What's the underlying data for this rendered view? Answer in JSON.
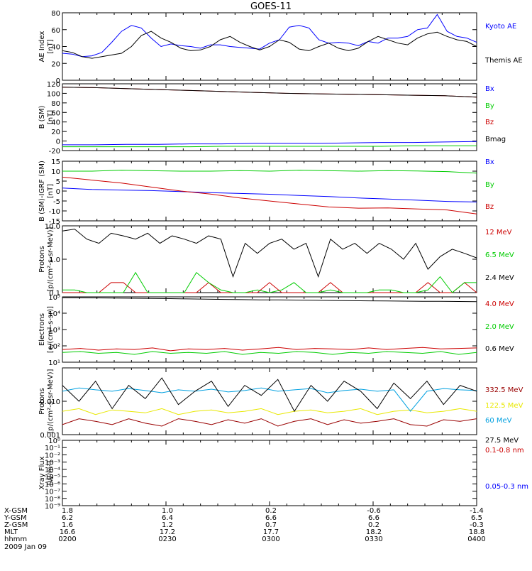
{
  "title": "GOES-11",
  "colors": {
    "black": "#000000",
    "blue": "#0000ff",
    "green": "#00cc00",
    "red": "#cc0000",
    "darkred": "#990000",
    "cyan": "#00a0e0",
    "yellow": "#e8e800"
  },
  "chart_data": [
    {
      "type": "line",
      "ylabel": [
        "AE Index",
        "[nT]"
      ],
      "ylim": [
        0,
        80
      ],
      "log": false,
      "yticks": [
        0,
        20,
        40,
        60,
        80
      ],
      "ytick_labels": [
        "0",
        "20",
        "40",
        "60",
        "80"
      ],
      "series": [
        {
          "name": "Kyoto AE",
          "color": "#0000ff",
          "values": [
            32,
            31,
            28,
            29,
            33,
            45,
            58,
            65,
            62,
            50,
            40,
            43,
            41,
            40,
            38,
            42,
            42,
            40,
            39,
            38,
            37,
            44,
            48,
            63,
            65,
            62,
            48,
            44,
            45,
            44,
            41,
            46,
            44,
            50,
            50,
            52,
            60,
            62,
            78,
            58,
            52,
            50,
            45
          ]
        },
        {
          "name": "Themis AE",
          "color": "#000000",
          "values": [
            35,
            33,
            28,
            26,
            28,
            30,
            32,
            40,
            53,
            58,
            50,
            45,
            38,
            35,
            36,
            40,
            48,
            52,
            45,
            40,
            36,
            40,
            48,
            45,
            37,
            35,
            40,
            44,
            38,
            35,
            38,
            46,
            52,
            48,
            44,
            42,
            50,
            55,
            57,
            52,
            48,
            46,
            40
          ]
        }
      ]
    },
    {
      "type": "line",
      "ylabel": [
        "B (SM)",
        "[nT]"
      ],
      "ylim": [
        -20,
        120
      ],
      "log": false,
      "yticks": [
        -20,
        0,
        20,
        40,
        60,
        80,
        100,
        120
      ],
      "ytick_labels": [
        "-20",
        "0",
        "20",
        "40",
        "60",
        "80",
        "100",
        "120"
      ],
      "series": [
        {
          "name": "Bx",
          "color": "#0000ff",
          "values": [
            -8,
            -8,
            -7,
            -7,
            -6,
            -6,
            -5,
            -5,
            -5,
            -4,
            -3,
            -3,
            -2,
            -1
          ]
        },
        {
          "name": "By",
          "color": "#00cc00",
          "values": [
            -12,
            -12,
            -12,
            -12,
            -12,
            -11,
            -11,
            -11,
            -11,
            -11,
            -11,
            -10,
            -10,
            -10
          ]
        },
        {
          "name": "Bz",
          "color": "#cc0000",
          "values": [
            113,
            112,
            110,
            108,
            106,
            104,
            102,
            100,
            99,
            98,
            97,
            96,
            95,
            92
          ]
        },
        {
          "name": "Bmag",
          "color": "#000000",
          "values": [
            113,
            112,
            110,
            108,
            106,
            104,
            102,
            100,
            99,
            98,
            97,
            96,
            95,
            92
          ]
        }
      ]
    },
    {
      "type": "line",
      "ylabel": [
        "B (SM)-IGRF (SM)",
        "[nT]"
      ],
      "ylim": [
        -15,
        15
      ],
      "log": false,
      "yticks": [
        -15,
        -10,
        -5,
        0,
        5,
        10,
        15
      ],
      "ytick_labels": [
        "-15",
        "-10",
        "-5",
        "0",
        "5",
        "10",
        "15"
      ],
      "series": [
        {
          "name": "Bx",
          "color": "#0000ff",
          "values": [
            1.5,
            0.8,
            0.5,
            0.2,
            -0.3,
            -0.8,
            -1.2,
            -1.6,
            -2.2,
            -2.8,
            -3.5,
            -4,
            -4.6,
            -5.2,
            -5.5
          ]
        },
        {
          "name": "By",
          "color": "#00cc00",
          "values": [
            10,
            10,
            10.5,
            10.2,
            10,
            10,
            10.3,
            10,
            10.5,
            10.2,
            10,
            10.3,
            10.1,
            9.8,
            9
          ]
        },
        {
          "name": "Bz",
          "color": "#cc0000",
          "values": [
            7,
            5.5,
            4,
            2,
            0,
            -1.5,
            -3.5,
            -5,
            -6.5,
            -8,
            -8.6,
            -8.5,
            -9,
            -9.5,
            -11.5
          ]
        }
      ]
    },
    {
      "type": "line",
      "ylabel": [
        "Protons",
        "[p/(cm²-s-sr-MeV)]"
      ],
      "ylim": [
        0.1,
        10
      ],
      "log": true,
      "yticks": [
        0.1,
        1,
        10
      ],
      "ytick_labels": [
        "0.1",
        "1.0",
        "10.0"
      ],
      "series": [
        {
          "name": "12 MeV",
          "color": "#cc0000",
          "values": [
            0.1,
            0.1,
            0.1,
            0.1,
            0.2,
            0.2,
            0.1,
            0.1,
            0.1,
            0.1,
            0.1,
            0.1,
            0.2,
            0.1,
            0.1,
            0.1,
            0.1,
            0.2,
            0.1,
            0.1,
            0.1,
            0.1,
            0.2,
            0.1,
            0.1,
            0.1,
            0.1,
            0.1,
            0.1,
            0.1,
            0.2,
            0.1,
            0.1,
            0.2,
            0.1
          ]
        },
        {
          "name": "6.5 MeV",
          "color": "#00cc00",
          "values": [
            0.12,
            0.12,
            0.1,
            0.1,
            0.1,
            0.1,
            0.4,
            0.1,
            0.1,
            0.1,
            0.1,
            0.4,
            0.2,
            0.12,
            0.1,
            0.1,
            0.12,
            0.1,
            0.12,
            0.2,
            0.1,
            0.1,
            0.12,
            0.1,
            0.1,
            0.1,
            0.12,
            0.12,
            0.1,
            0.1,
            0.12,
            0.3,
            0.1,
            0.2,
            0.2
          ]
        },
        {
          "name": "2.4 MeV",
          "color": "#000000",
          "values": [
            7,
            8,
            4,
            3,
            6,
            5,
            4,
            6,
            3,
            5,
            4,
            3,
            5,
            4,
            0.3,
            3,
            1.5,
            3,
            4,
            2,
            3,
            0.3,
            4,
            2,
            3,
            1.5,
            3,
            2,
            1,
            3,
            0.5,
            1.2,
            2,
            1.5,
            1.1
          ]
        }
      ]
    },
    {
      "type": "line",
      "ylabel": [
        "Electrons",
        "[e/(cm²-s-sr)]"
      ],
      "ylim": [
        10,
        100000
      ],
      "log": true,
      "yticks": [
        10,
        100,
        1000,
        10000,
        100000
      ],
      "ytick_labels": [
        "10¹",
        "10²",
        "10³",
        "10⁴",
        "10⁵"
      ],
      "series": [
        {
          "name": "4.0 MeV",
          "color": "#cc0000",
          "values": [
            60,
            70,
            55,
            65,
            60,
            75,
            50,
            65,
            60,
            70,
            55,
            65,
            80,
            60,
            70,
            65,
            60,
            75,
            60,
            70,
            80,
            65,
            70,
            75
          ]
        },
        {
          "name": "2.0 MeV",
          "color": "#00cc00",
          "values": [
            40,
            45,
            35,
            40,
            30,
            45,
            35,
            40,
            35,
            45,
            30,
            40,
            35,
            45,
            40,
            30,
            40,
            35,
            45,
            40,
            35,
            45,
            30,
            40
          ]
        },
        {
          "name": "0.6 MeV",
          "color": "#000000",
          "values": [
            90000,
            88000,
            86000,
            84000,
            82000,
            80000,
            78000,
            75000,
            72000,
            70000,
            68000,
            66000,
            65000,
            64000,
            62000,
            60000,
            58000,
            57000,
            56000,
            55000,
            54000,
            53000,
            52000,
            51000
          ]
        }
      ]
    },
    {
      "type": "line",
      "ylabel": [
        "Protons",
        "[p/(cm²-s-sr-MeV)]"
      ],
      "ylim": [
        0.001,
        0.1
      ],
      "log": true,
      "yticks": [
        0.001,
        0.01
      ],
      "ytick_labels": [
        "0.001",
        "0.010"
      ],
      "series": [
        {
          "name": "332.5 MeV",
          "color": "#990000",
          "values": [
            0.002,
            0.003,
            0.0025,
            0.002,
            0.003,
            0.0022,
            0.0018,
            0.003,
            0.0025,
            0.002,
            0.0028,
            0.0022,
            0.003,
            0.0018,
            0.0025,
            0.003,
            0.002,
            0.0028,
            0.0022,
            0.0025,
            0.003,
            0.002,
            0.0018,
            0.0028,
            0.0025,
            0.003
          ]
        },
        {
          "name": "122.5 MeV",
          "color": "#e8e800",
          "values": [
            0.005,
            0.006,
            0.004,
            0.0055,
            0.005,
            0.0045,
            0.006,
            0.004,
            0.005,
            0.0055,
            0.0045,
            0.005,
            0.006,
            0.004,
            0.005,
            0.0055,
            0.0045,
            0.005,
            0.006,
            0.004,
            0.005,
            0.0055,
            0.0045,
            0.005,
            0.006,
            0.005
          ]
        },
        {
          "name": "60 MeV",
          "color": "#00a0e0",
          "values": [
            0.02,
            0.025,
            0.022,
            0.02,
            0.024,
            0.021,
            0.018,
            0.022,
            0.02,
            0.023,
            0.019,
            0.021,
            0.025,
            0.02,
            0.022,
            0.024,
            0.018,
            0.021,
            0.023,
            0.02,
            0.022,
            0.005,
            0.02,
            0.024,
            0.022,
            0.021
          ]
        },
        {
          "name": "27.5 MeV",
          "color": "#000000",
          "values": [
            0.03,
            0.01,
            0.04,
            0.006,
            0.03,
            0.012,
            0.05,
            0.008,
            0.02,
            0.04,
            0.007,
            0.03,
            0.015,
            0.045,
            0.005,
            0.03,
            0.01,
            0.04,
            0.02,
            0.006,
            0.035,
            0.012,
            0.04,
            0.008,
            0.03,
            0.02
          ]
        }
      ]
    },
    {
      "type": "line",
      "ylabel": [
        "Xray Flux",
        "[W/m²]"
      ],
      "ylim": [
        1e-09,
        1
      ],
      "log": true,
      "yticks": [
        1e-09,
        1e-08,
        1e-07,
        1e-06,
        1e-05,
        0.0001,
        0.001,
        0.01,
        0.1,
        1
      ],
      "ytick_labels": [
        "10⁻⁹",
        "10⁻⁸",
        "10⁻⁷",
        "10⁻⁶",
        "10⁻⁵",
        "10⁻⁴",
        "10⁻³",
        "10⁻²",
        "10⁻¹",
        "10⁰"
      ],
      "series": [
        {
          "name": "0.1-0.8 nm",
          "color": "#cc0000",
          "values": []
        },
        {
          "name": "0.05-0.3 nm",
          "color": "#0000ff",
          "values": []
        }
      ]
    }
  ],
  "x_axis": {
    "rows": [
      {
        "label": "X-GSM",
        "values": [
          "1.8",
          "1.0",
          "0.2",
          "-0.6",
          "-1.4"
        ]
      },
      {
        "label": "Y-GSM",
        "values": [
          "6.2",
          "6.4",
          "6.6",
          "6.6",
          "6.5"
        ]
      },
      {
        "label": "Z-GSM",
        "values": [
          "1.6",
          "1.2",
          "0.7",
          "0.2",
          "-0.3"
        ]
      },
      {
        "label": "MLT",
        "values": [
          "16.6",
          "17.2",
          "17.7",
          "18.2",
          "18.8"
        ]
      },
      {
        "label": "hhmm",
        "values": [
          "0200",
          "0230",
          "0300",
          "0330",
          "0400"
        ]
      }
    ],
    "date": "2009 Jan 09"
  }
}
